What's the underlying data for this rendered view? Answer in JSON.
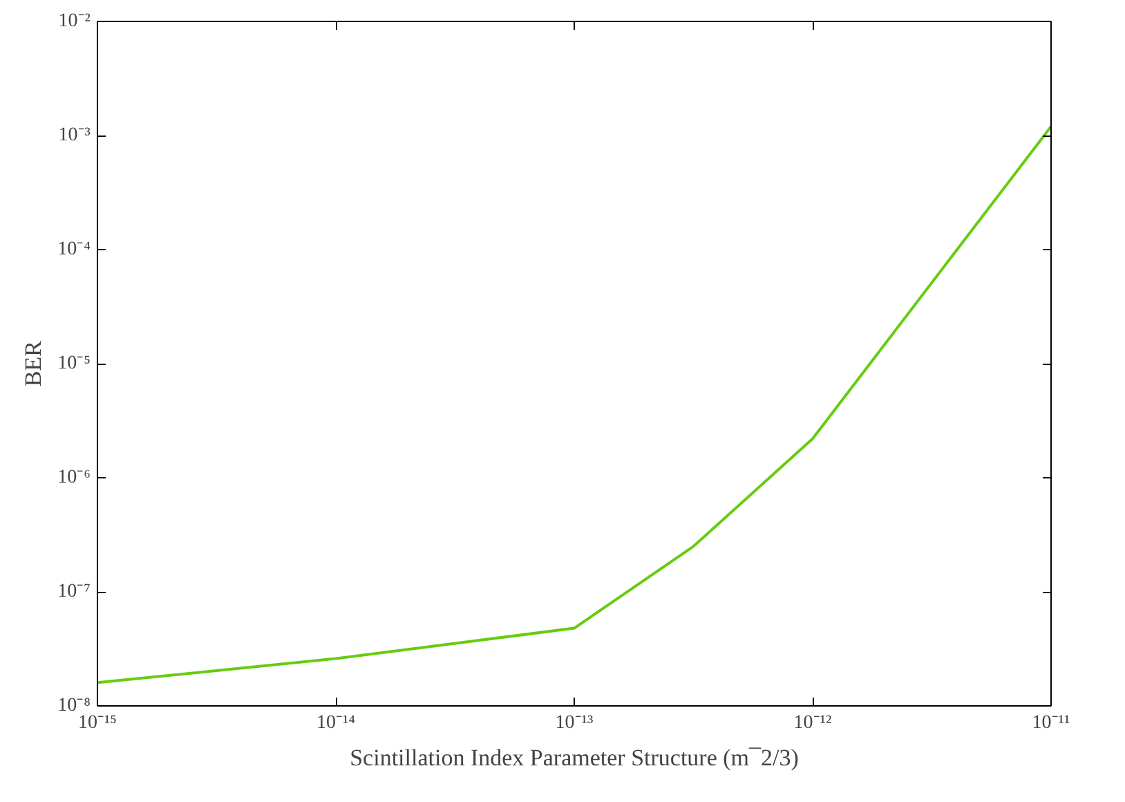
{
  "chart_data": {
    "type": "line",
    "xlabel": "Scintillation Index Parameter Structure (m¯2/3)",
    "ylabel": "BER",
    "log": "xy",
    "grid": false,
    "marker": "none",
    "line_style": "solid",
    "x": [
      1e-15,
      1e-14,
      1e-13,
      3.16e-13,
      1e-12,
      1e-11
    ],
    "series": [
      {
        "color": "#66cc11",
        "values": [
          1.6e-08,
          2.6e-08,
          4.8e-08,
          2.5e-07,
          2.2e-06,
          0.0012
        ]
      }
    ],
    "xlim": [
      1e-15,
      1e-11
    ],
    "ylim": [
      1e-08,
      0.01
    ],
    "xticks": [
      {
        "value": 1e-15,
        "label": "10⁻¹⁵"
      },
      {
        "value": 1e-14,
        "label": "10⁻¹⁴"
      },
      {
        "value": 1e-13,
        "label": "10⁻¹³"
      },
      {
        "value": 1e-12,
        "label": "10⁻¹²"
      },
      {
        "value": 1e-11,
        "label": "10⁻¹¹"
      }
    ],
    "yticks": [
      {
        "value": 1e-08,
        "label": "10⁻⁸"
      },
      {
        "value": 1e-07,
        "label": "10⁻⁷"
      },
      {
        "value": 1e-06,
        "label": "10⁻⁶"
      },
      {
        "value": 1e-05,
        "label": "10⁻⁵"
      },
      {
        "value": 0.0001,
        "label": "10⁻⁴"
      },
      {
        "value": 0.001,
        "label": "10⁻³"
      },
      {
        "value": 0.01,
        "label": "10⁻²"
      }
    ]
  }
}
